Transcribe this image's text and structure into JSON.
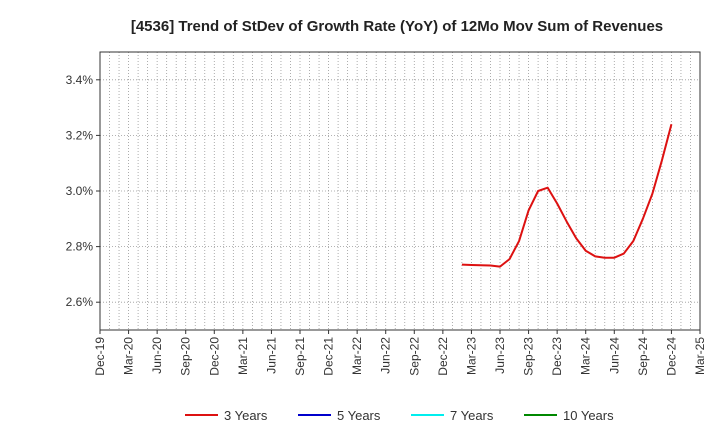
{
  "chart_data": {
    "type": "line",
    "title": "[4536]  Trend of StDev of Growth Rate (YoY) of 12Mo Mov Sum of Revenues",
    "xlabel": "",
    "ylabel": "",
    "x_ticks": [
      "Dec-19",
      "Mar-20",
      "Jun-20",
      "Sep-20",
      "Dec-20",
      "Mar-21",
      "Jun-21",
      "Sep-21",
      "Dec-21",
      "Mar-22",
      "Jun-22",
      "Sep-22",
      "Dec-22",
      "Mar-23",
      "Jun-23",
      "Sep-23",
      "Dec-23",
      "Mar-24",
      "Jun-24",
      "Sep-24",
      "Dec-24",
      "Mar-25"
    ],
    "y_ticks": [
      2.6,
      2.8,
      3.0,
      3.2,
      3.4
    ],
    "y_tick_labels": [
      "2.6%",
      "2.8%",
      "3.0%",
      "3.2%",
      "3.4%"
    ],
    "ylim": [
      2.5,
      3.5
    ],
    "grid": true,
    "legend_position": "bottom",
    "series": [
      {
        "name": "3 Years",
        "color": "#dd1111",
        "points": [
          [
            "Feb-23",
            2.735
          ],
          [
            "Mar-23",
            2.734
          ],
          [
            "Apr-23",
            2.733
          ],
          [
            "May-23",
            2.732
          ],
          [
            "Jun-23",
            2.728
          ],
          [
            "Jul-23",
            2.755
          ],
          [
            "Aug-23",
            2.82
          ],
          [
            "Sep-23",
            2.93
          ],
          [
            "Oct-23",
            3.0
          ],
          [
            "Nov-23",
            3.012
          ],
          [
            "Dec-23",
            2.955
          ],
          [
            "Jan-24",
            2.89
          ],
          [
            "Feb-24",
            2.83
          ],
          [
            "Mar-24",
            2.785
          ],
          [
            "Apr-24",
            2.765
          ],
          [
            "May-24",
            2.76
          ],
          [
            "Jun-24",
            2.76
          ],
          [
            "Jul-24",
            2.775
          ],
          [
            "Aug-24",
            2.82
          ],
          [
            "Sep-24",
            2.9
          ],
          [
            "Oct-24",
            2.99
          ],
          [
            "Nov-24",
            3.11
          ],
          [
            "Dec-24",
            3.24
          ]
        ]
      },
      {
        "name": "5 Years",
        "color": "#0000cc",
        "points": []
      },
      {
        "name": "7 Years",
        "color": "#00eeee",
        "points": []
      },
      {
        "name": "10 Years",
        "color": "#008800",
        "points": []
      }
    ]
  }
}
